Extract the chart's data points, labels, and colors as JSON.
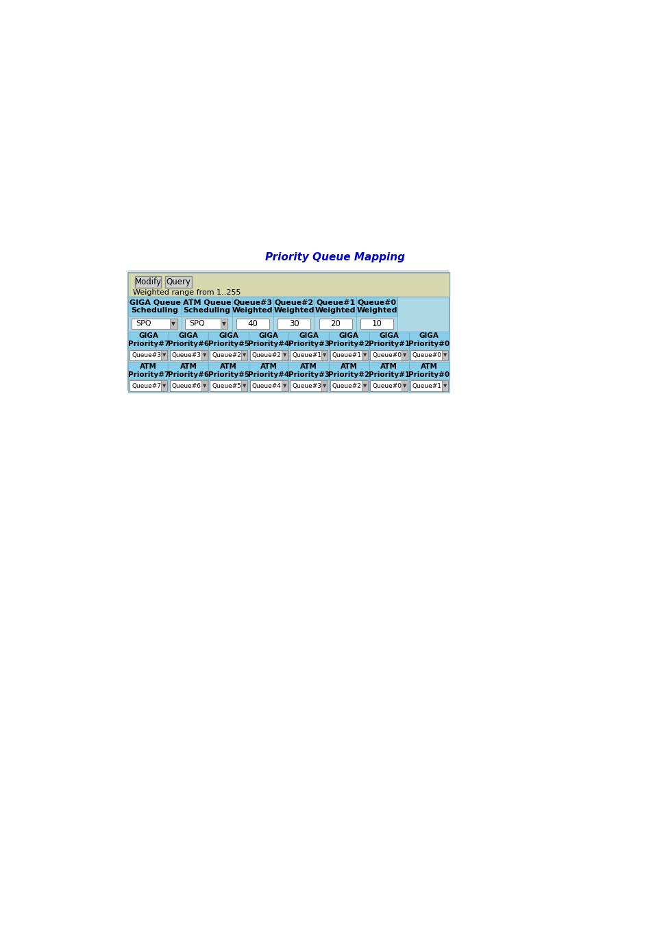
{
  "title": "Priority Queue Mapping",
  "title_color": "#0000CC",
  "title_fontsize": 11,
  "page_bg": "#FFFFFF",
  "panel_bg": "#ADD8E6",
  "top_bar_bg": "#D8D8B0",
  "button_bg": "#D0D0D0",
  "button_border": "#888888",
  "button_texts": [
    "Modify",
    "Query"
  ],
  "weighted_text": "Weighted range from 1..255",
  "header1_cols": [
    "GIGA Queue\nScheduling",
    "ATM Queue\nScheduling",
    "Queue#3\nWeighted",
    "Queue#2\nWeighted",
    "Queue#1\nWeighted",
    "Queue#0\nWeighted"
  ],
  "header2_cols": [
    "GIGA\nPriority#7",
    "GIGA\nPriority#6",
    "GIGA\nPriority#5",
    "GIGA\nPriority#4",
    "GIGA\nPriority#3",
    "GIGA\nPriority#2",
    "GIGA\nPriority#1",
    "GIGA\nPriority#0"
  ],
  "header3_cols": [
    "ATM\nPriority#7",
    "ATM\nPriority#6",
    "ATM\nPriority#5",
    "ATM\nPriority#4",
    "ATM\nPriority#3",
    "ATM\nPriority#2",
    "ATM\nPriority#1",
    "ATM\nPriority#0"
  ],
  "giga_vals": [
    "Queue#3",
    "Queue#3",
    "Queue#2",
    "Queue#2",
    "Queue#1",
    "Queue#1",
    "Queue#0",
    "Queue#0"
  ],
  "atm_vals": [
    "Queue#7",
    "Queue#6",
    "Queue#5",
    "Queue#4",
    "Queue#3",
    "Queue#2",
    "Queue#0",
    "Queue#1"
  ],
  "weighted_vals": [
    "40",
    "30",
    "20",
    "10"
  ],
  "dropdown_bg": "#FFFFFF",
  "header_bg": "#87CEEB",
  "row_bg": "#ADD8E6",
  "border_color": "#7AAABB",
  "outer_border": "#8AABB8"
}
